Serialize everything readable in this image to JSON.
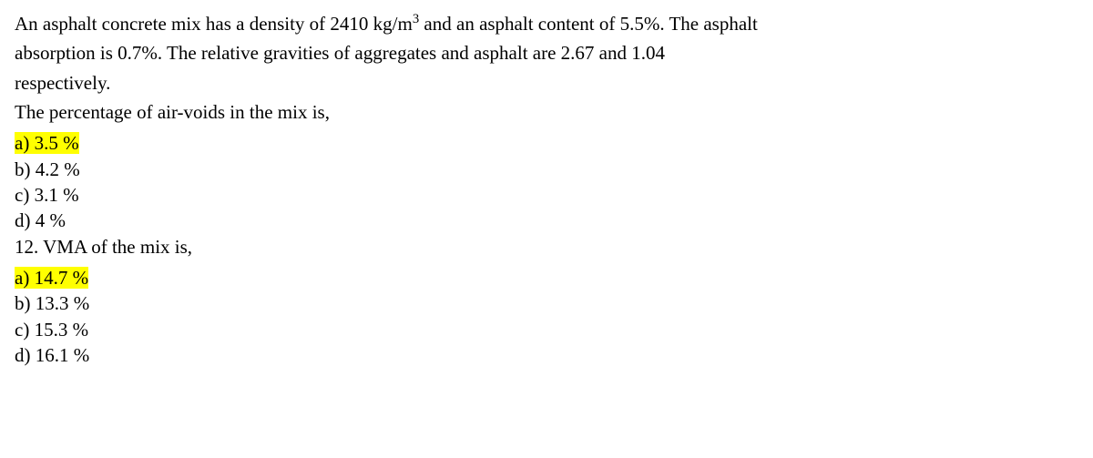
{
  "question": {
    "line1_pre": "An asphalt concrete mix has a density of 2410 kg/m",
    "line1_sup": "3",
    "line1_post": " and an asphalt content of 5.5%. The asphalt",
    "line2": "absorption is 0.7%. The relative gravities of aggregates and asphalt are 2.67 and 1.04",
    "line3": "respectively.",
    "line4": "The percentage of air-voids in the mix is,"
  },
  "q1_options": {
    "a": "a) 3.5 %",
    "b": "b) 4.2 %",
    "c": "c) 3.1 %",
    "d": "d) 4 %"
  },
  "q2_stem": "12. VMA of the mix is,",
  "q2_options": {
    "a": "a) 14.7 %",
    "b": "b) 13.3 %",
    "c": "c) 15.3 %",
    "d": "d) 16.1 %"
  }
}
